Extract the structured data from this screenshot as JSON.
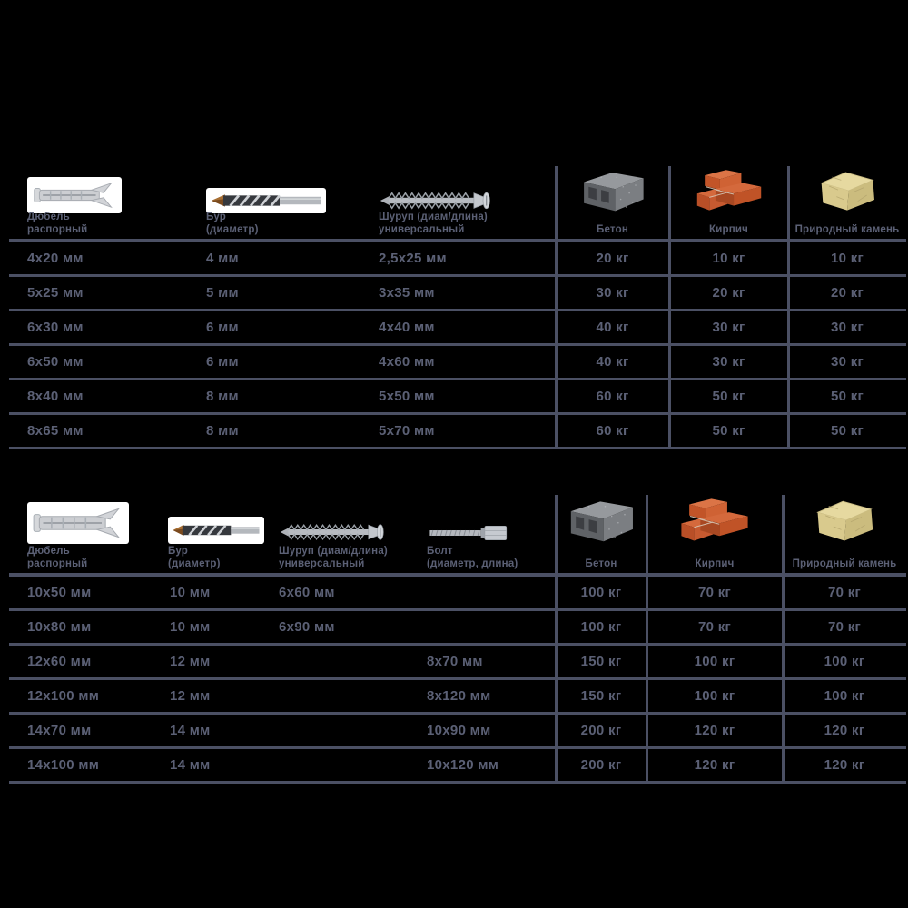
{
  "colors": {
    "background": "#000000",
    "text": "#5b6075",
    "grid_line": "#4b5064",
    "photo_background": "#ffffff",
    "brick": "#c65a30",
    "concrete": "#7b7e82",
    "stone": "#d9ca8d"
  },
  "chart_data": [
    {
      "type": "table",
      "columns": [
        {
          "id": "dowel",
          "icon": "dowel-icon",
          "label": "Дюбель\nраспорный"
        },
        {
          "id": "drill",
          "icon": "drill-bit-icon",
          "label": "Бур\n(диаметр)"
        },
        {
          "id": "screw",
          "icon": "screw-icon",
          "label": "Шуруп (диам/длина)\nуниверсальный"
        },
        {
          "id": "concrete",
          "icon": "concrete-block-icon",
          "label": "Бетон"
        },
        {
          "id": "brick",
          "icon": "bricks-icon",
          "label": "Кирпич"
        },
        {
          "id": "stone",
          "icon": "natural-stone-icon",
          "label": "Природный камень"
        }
      ],
      "rows": [
        [
          "4х20 мм",
          "4 мм",
          "2,5х25 мм",
          "20 кг",
          "10 кг",
          "10 кг"
        ],
        [
          "5х25 мм",
          "5 мм",
          "3х35 мм",
          "30 кг",
          "20 кг",
          "20 кг"
        ],
        [
          "6х30 мм",
          "6 мм",
          "4х40 мм",
          "40 кг",
          "30 кг",
          "30 кг"
        ],
        [
          "6х50 мм",
          "6 мм",
          "4х60 мм",
          "40 кг",
          "30 кг",
          "30 кг"
        ],
        [
          "8х40 мм",
          "8 мм",
          "5х50 мм",
          "60 кг",
          "50 кг",
          "50 кг"
        ],
        [
          "8х65 мм",
          "8 мм",
          "5х70 мм",
          "60 кг",
          "50 кг",
          "50 кг"
        ]
      ]
    },
    {
      "type": "table",
      "columns": [
        {
          "id": "dowel",
          "icon": "dowel-icon",
          "label": "Дюбель\nраспорный"
        },
        {
          "id": "drill",
          "icon": "drill-bit-icon",
          "label": "Бур\n(диаметр)"
        },
        {
          "id": "screw",
          "icon": "screw-icon",
          "label": "Шуруп (диам/длина)\nуниверсальный"
        },
        {
          "id": "bolt",
          "icon": "bolt-icon",
          "label": "Болт\n(диаметр, длина)"
        },
        {
          "id": "concrete",
          "icon": "concrete-block-icon",
          "label": "Бетон"
        },
        {
          "id": "brick",
          "icon": "bricks-icon",
          "label": "Кирпич"
        },
        {
          "id": "stone",
          "icon": "natural-stone-icon",
          "label": "Природный камень"
        }
      ],
      "rows": [
        [
          "10х50 мм",
          "10 мм",
          "6х60 мм",
          "",
          "100 кг",
          "70 кг",
          "70 кг"
        ],
        [
          "10х80 мм",
          "10 мм",
          "6х90 мм",
          "",
          "100 кг",
          "70 кг",
          "70 кг"
        ],
        [
          "12х60 мм",
          "12 мм",
          "",
          "8х70 мм",
          "150 кг",
          "100 кг",
          "100 кг"
        ],
        [
          "12х100 мм",
          "12 мм",
          "",
          "8х120 мм",
          "150 кг",
          "100 кг",
          "100 кг"
        ],
        [
          "14х70 мм",
          "14 мм",
          "",
          "10х90 мм",
          "200 кг",
          "120 кг",
          "120 кг"
        ],
        [
          "14х100 мм",
          "14 мм",
          "",
          "10х120 мм",
          "200 кг",
          "120 кг",
          "120 кг"
        ]
      ]
    }
  ]
}
